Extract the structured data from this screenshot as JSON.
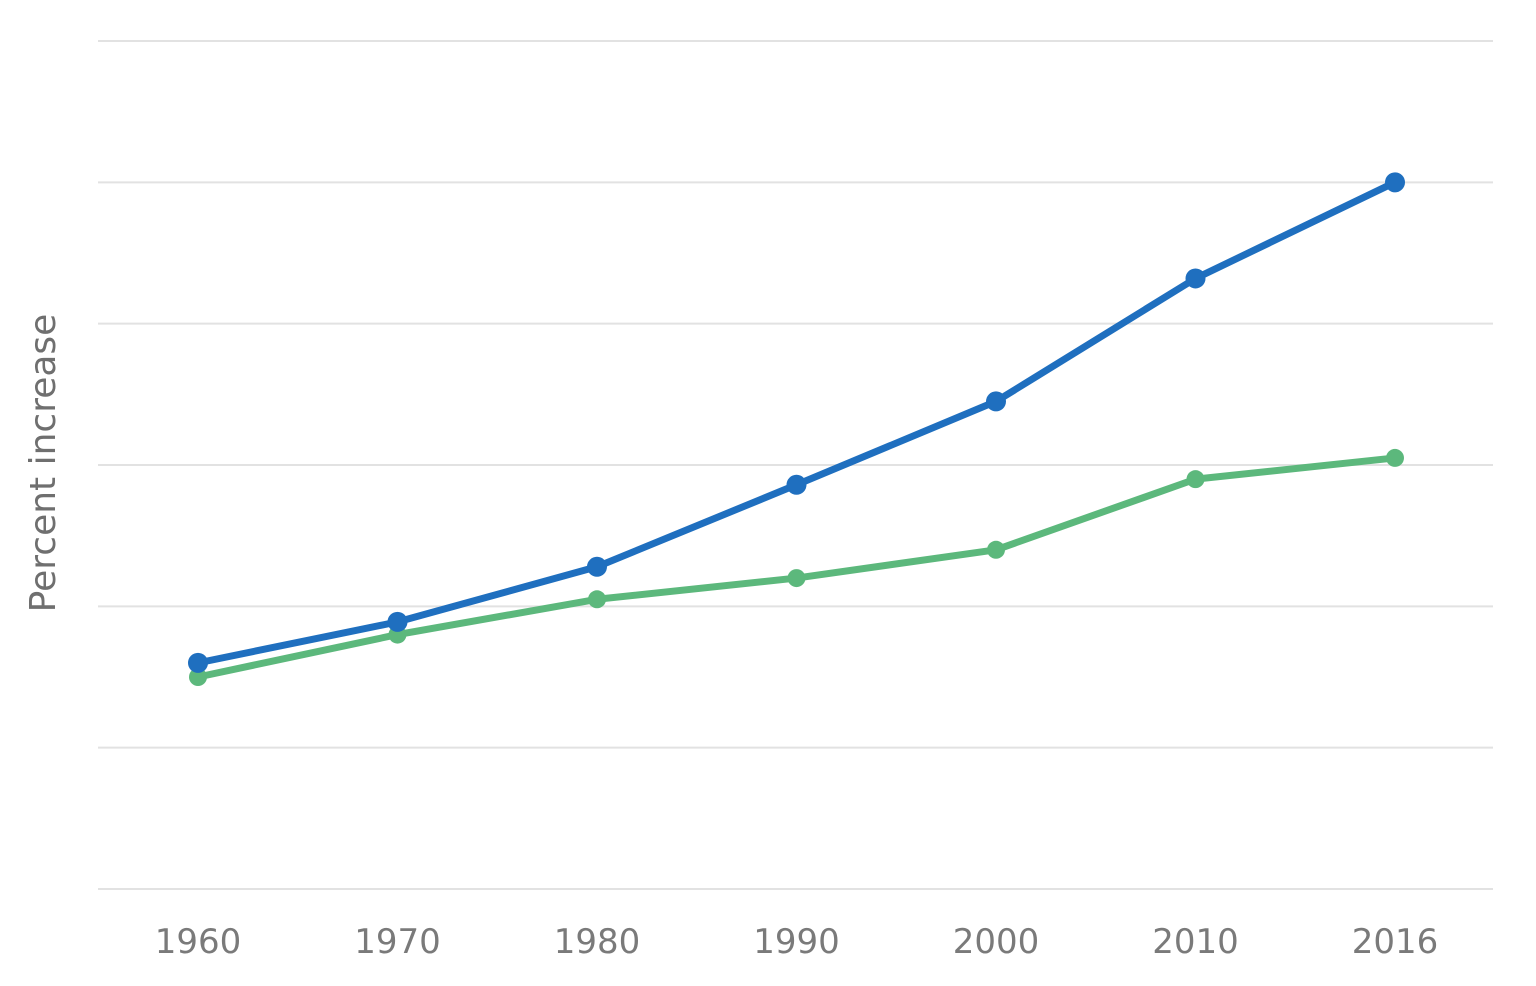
{
  "chart_data": {
    "type": "line",
    "title": "",
    "xlabel": "",
    "ylabel": "Percent increase",
    "categories": [
      "1960",
      "1970",
      "1980",
      "1990",
      "2000",
      "2010",
      "2016"
    ],
    "ylim": [
      0,
      6
    ],
    "grid": true,
    "series": [
      {
        "color": "#1f6fbf",
        "values": [
          1.6,
          1.89,
          2.28,
          2.86,
          3.45,
          4.32,
          5.0
        ]
      },
      {
        "color": "#5cb87c",
        "values": [
          1.5,
          1.8,
          2.05,
          2.2,
          2.4,
          2.9,
          3.05
        ]
      }
    ]
  }
}
